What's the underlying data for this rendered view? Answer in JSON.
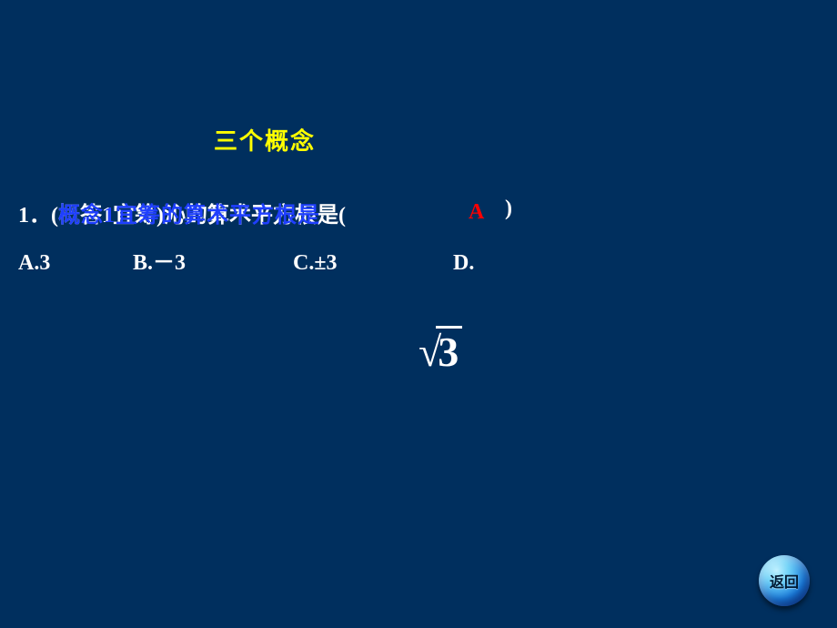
{
  "title": "三个概念",
  "question": {
    "number": "1．",
    "overlapped_white": "(概答1宜筹)沁的算术平方根是(",
    "overlapped_blue": "概念1宜筹的算术平方根是",
    "paren_close": ")",
    "answer": "A"
  },
  "options": {
    "a": "A.3",
    "b": "B.－3",
    "c": "C.±3",
    "d": "D."
  },
  "sqrt_expr": {
    "symbol": "√",
    "radicand": "3"
  },
  "back_button": {
    "label": "返回"
  },
  "styling": {
    "background_color": "#002f5e",
    "title_color": "#ffff00",
    "text_color": "#ffffff",
    "overlay_color": "#1f3fff",
    "answer_color": "#ff0000",
    "title_fontsize": 26,
    "body_fontsize": 24,
    "sqrt_fontsize": 46,
    "button_gradient": [
      "#bff1ff",
      "#6fd2f7",
      "#1b7fe0",
      "#0a3a9a"
    ]
  }
}
